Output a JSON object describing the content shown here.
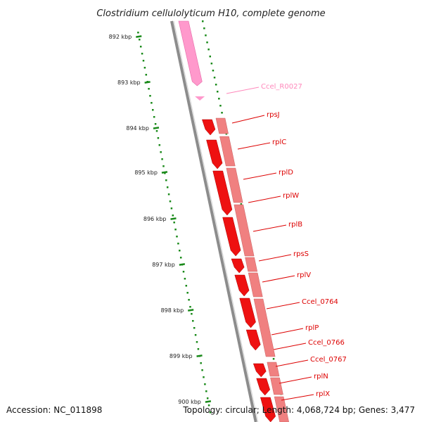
{
  "title": "Clostridium cellulolyticum H10, complete genome",
  "footer": {
    "accession": "Accession: NC_011898",
    "summary": "Topology: circular; Length: 4,068,724 bp; Genes: 3,477"
  },
  "colors": {
    "backbone": "#8c8c8c",
    "tick": "#1a8a1a",
    "rna_feature": "#ff99cc",
    "gene_forward": "#ee1111",
    "gene_companion": "#f08080",
    "label_rna": "#ff88bb",
    "label_gene": "#dd0000"
  },
  "scale": {
    "unit": "kbp",
    "ticks": [
      "892 kbp",
      "893 kbp",
      "894 kbp",
      "895 kbp",
      "896 kbp",
      "897 kbp",
      "898 kbp",
      "899 kbp",
      "900 kbp"
    ]
  },
  "features": [
    {
      "name": "Ccel_R0027",
      "type": "rna"
    },
    {
      "name": "rpsJ",
      "type": "gene"
    },
    {
      "name": "rplC",
      "type": "gene"
    },
    {
      "name": "rplD",
      "type": "gene"
    },
    {
      "name": "rplW",
      "type": "gene"
    },
    {
      "name": "rplB",
      "type": "gene"
    },
    {
      "name": "rpsS",
      "type": "gene"
    },
    {
      "name": "rplV",
      "type": "gene"
    },
    {
      "name": "Ccel_0764",
      "type": "gene"
    },
    {
      "name": "rplP",
      "type": "gene"
    },
    {
      "name": "Ccel_0766",
      "type": "gene"
    },
    {
      "name": "Ccel_0767",
      "type": "gene"
    },
    {
      "name": "rplN",
      "type": "gene"
    },
    {
      "name": "rplX",
      "type": "gene"
    }
  ]
}
